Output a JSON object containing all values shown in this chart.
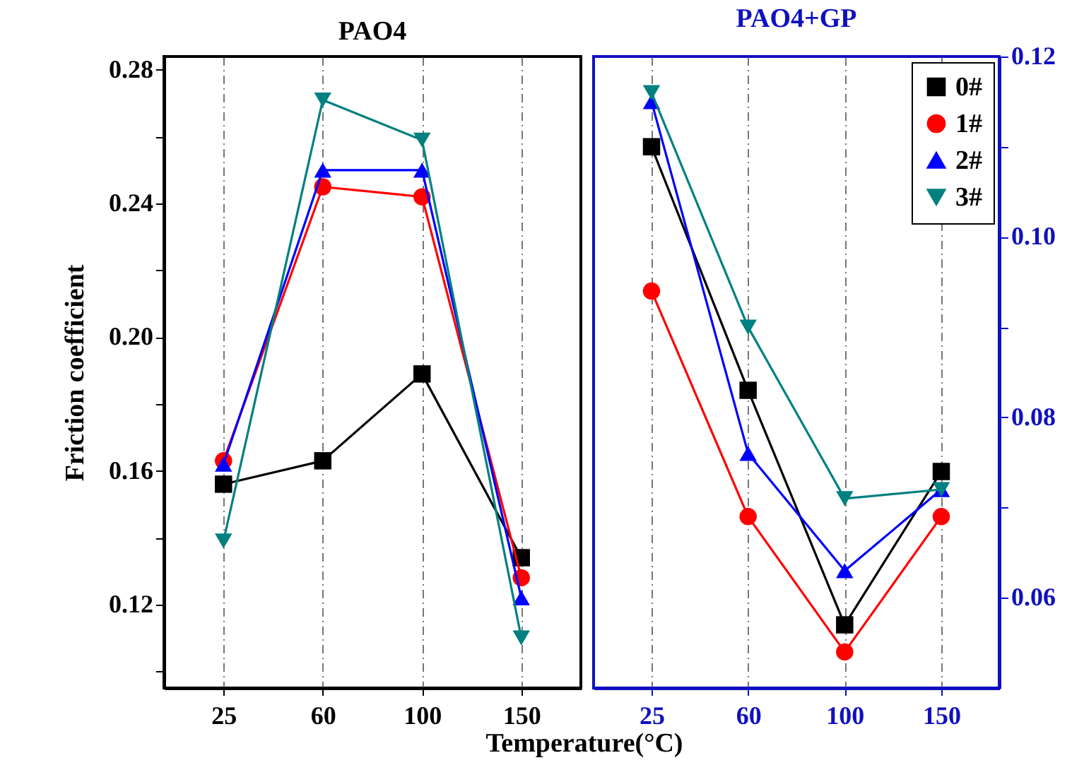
{
  "chart_data": [
    {
      "type": "line",
      "title": "PAO4",
      "xlabel": "Temperature(°C)",
      "ylabel": "Friction coefficient",
      "categories": [
        "25",
        "60",
        "100",
        "150"
      ],
      "ylim": [
        0.095,
        0.284
      ],
      "yticks": [
        {
          "value": 0.1,
          "label": null
        },
        0.12,
        {
          "value": 0.14,
          "label": null
        },
        0.16,
        {
          "value": 0.18,
          "label": null
        },
        {
          "value": 0.2,
          "label": "0.20"
        },
        {
          "value": 0.22,
          "label": null
        },
        0.24,
        {
          "value": 0.26,
          "label": null
        },
        0.28
      ],
      "grid": "x",
      "legend": false,
      "line_style": "solid",
      "series": [
        {
          "color": "#000000",
          "marker": "square",
          "values": [
            0.156,
            0.163,
            0.189,
            0.134
          ]
        },
        {
          "color": "#ff0000",
          "marker": "circle",
          "values": [
            0.163,
            0.245,
            0.242,
            0.128
          ]
        },
        {
          "color": "#0000ff",
          "marker": "triangle",
          "values": [
            0.162,
            0.25,
            0.25,
            0.122
          ]
        },
        {
          "color": "#008080",
          "marker": "triangle-down",
          "values": [
            0.139,
            0.271,
            0.259,
            0.11
          ]
        }
      ]
    },
    {
      "type": "line",
      "title": "PAO4+GP",
      "categories": [
        "25",
        "60",
        "100",
        "150"
      ],
      "y2lim": [
        0.05,
        0.12
      ],
      "y2ticks": [
        0.06,
        {
          "value": 0.07,
          "label": null
        },
        0.08,
        {
          "value": 0.09,
          "label": null
        },
        {
          "value": 0.1,
          "label": "0.10"
        },
        {
          "value": 0.11,
          "label": null
        },
        0.12
      ],
      "grid": "x",
      "legend": "top right",
      "line_style": "solid",
      "series": [
        {
          "name": "0#",
          "color": "#000000",
          "marker": "square",
          "axis": "y2",
          "values": [
            0.11,
            0.083,
            0.057,
            0.074
          ]
        },
        {
          "name": "1#",
          "color": "#ff0000",
          "marker": "circle",
          "axis": "y2",
          "values": [
            0.094,
            0.069,
            0.054,
            0.069
          ]
        },
        {
          "name": "2#",
          "color": "#0000ff",
          "marker": "triangle",
          "axis": "y2",
          "values": [
            0.115,
            0.076,
            0.063,
            0.072
          ]
        },
        {
          "name": "3#",
          "color": "#008080",
          "marker": "triangle-down",
          "axis": "y2",
          "values": [
            0.116,
            0.09,
            0.071,
            0.072
          ]
        }
      ]
    }
  ]
}
